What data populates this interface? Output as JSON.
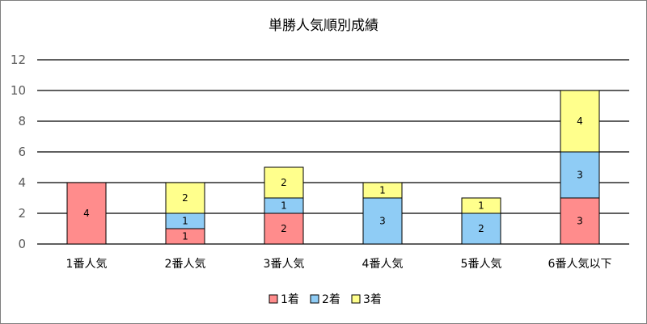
{
  "chart_data": {
    "type": "bar",
    "stacked": true,
    "title": "単勝人気順別成績",
    "xlabel": "",
    "ylabel": "",
    "categories": [
      "1番人気",
      "2番人気",
      "3番人気",
      "4番人気",
      "5番人気",
      "6番人気以下"
    ],
    "series": [
      {
        "name": "1着",
        "color": "#FF8C8C",
        "values": [
          4,
          1,
          2,
          0,
          0,
          3
        ]
      },
      {
        "name": "2着",
        "color": "#8FCCF5",
        "values": [
          0,
          1,
          1,
          3,
          2,
          3
        ]
      },
      {
        "name": "3着",
        "color": "#FFFF8C",
        "values": [
          0,
          2,
          2,
          1,
          1,
          4
        ]
      }
    ],
    "ylim": [
      0,
      12
    ],
    "yticks": [
      "0",
      "2",
      "4",
      "6",
      "8",
      "10",
      "12"
    ],
    "grid": true,
    "legend": "bottom"
  }
}
